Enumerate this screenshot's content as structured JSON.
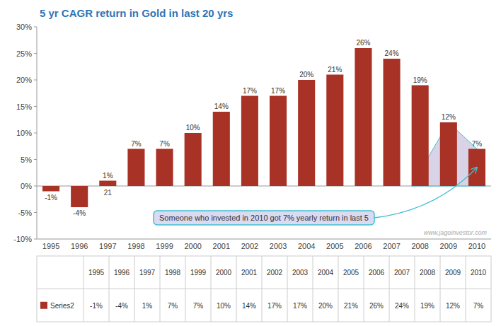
{
  "chart_data": {
    "type": "bar",
    "title": "5 yr CAGR return in Gold in last 20 yrs",
    "categories": [
      "1995",
      "1996",
      "1997",
      "1998",
      "1999",
      "2000",
      "2001",
      "2002",
      "2003",
      "2004",
      "2005",
      "2006",
      "2007",
      "2008",
      "2009",
      "2010"
    ],
    "series": [
      {
        "name": "Series2",
        "color": "#A93226",
        "values": [
          -1,
          -4,
          1,
          7,
          7,
          10,
          14,
          17,
          17,
          20,
          21,
          26,
          24,
          19,
          12,
          7
        ],
        "value_labels": [
          "-1%",
          "-4%",
          "1%",
          "7%",
          "7%",
          "10%",
          "14%",
          "17%",
          "17%",
          "20%",
          "21%",
          "26%",
          "24%",
          "19%",
          "12%",
          "7%"
        ]
      }
    ],
    "ylim": [
      -10,
      30
    ],
    "yticks": [
      {
        "value": -10,
        "label": "-10%"
      },
      {
        "value": -5,
        "label": "-5%"
      },
      {
        "value": 0,
        "label": "0%"
      },
      {
        "value": 5,
        "label": "5%"
      },
      {
        "value": 10,
        "label": "10%"
      },
      {
        "value": 15,
        "label": "15%"
      },
      {
        "value": 20,
        "label": "20%"
      },
      {
        "value": 25,
        "label": "25%"
      },
      {
        "value": 30,
        "label": "30%"
      }
    ],
    "grid": false,
    "legend": "bottom",
    "data_labels": true,
    "annotations": [
      "Someone who invested in 2010 got 7% yearly return in last 5",
      "21",
      "www.jagoinvestor.com"
    ]
  }
}
